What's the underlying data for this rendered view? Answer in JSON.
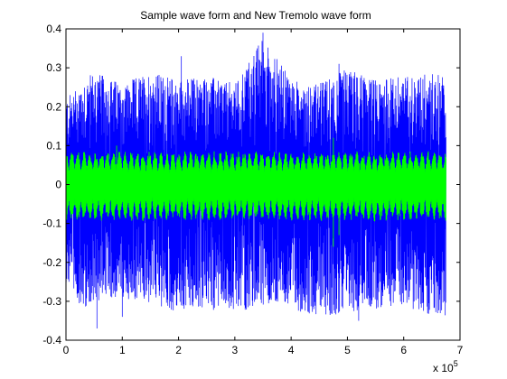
{
  "chart_data": {
    "type": "line",
    "title": "Sample wave form and New Tremolo wave form",
    "xlabel": "",
    "ylabel": "",
    "x_multiplier_label": "x 10",
    "x_multiplier_exponent": "5",
    "xlim": [
      0,
      7
    ],
    "ylim": [
      -0.4,
      0.4
    ],
    "x_data_extent": [
      0,
      6.75
    ],
    "xticks": [
      0,
      1,
      2,
      3,
      4,
      5,
      6,
      7
    ],
    "yticks": [
      0.4,
      0.3,
      0.2,
      0.1,
      0,
      -0.1,
      -0.2,
      -0.3,
      -0.4
    ],
    "ytick_labels": [
      "0.4",
      "0.3",
      "0.2",
      "0.1",
      "0",
      "-0.1",
      "-0.2",
      "-0.3",
      "-0.4"
    ],
    "grid": false,
    "legend": "none",
    "series": [
      {
        "color": "#0000ff",
        "style": "dense waveform",
        "envelope_upper": [
          [
            0,
            0.22
          ],
          [
            0.3,
            0.27
          ],
          [
            0.5,
            0.29
          ],
          [
            1.0,
            0.26
          ],
          [
            1.5,
            0.29
          ],
          [
            2.0,
            0.27
          ],
          [
            2.5,
            0.28
          ],
          [
            3.0,
            0.26
          ],
          [
            3.5,
            0.38
          ],
          [
            4.0,
            0.27
          ],
          [
            4.5,
            0.26
          ],
          [
            5.0,
            0.3
          ],
          [
            5.5,
            0.27
          ],
          [
            6.0,
            0.28
          ],
          [
            6.5,
            0.29
          ],
          [
            6.75,
            0.28
          ]
        ],
        "envelope_lower": [
          [
            0,
            -0.25
          ],
          [
            0.3,
            -0.32
          ],
          [
            0.5,
            -0.3
          ],
          [
            1.0,
            -0.29
          ],
          [
            1.5,
            -0.31
          ],
          [
            2.0,
            -0.33
          ],
          [
            2.5,
            -0.32
          ],
          [
            3.0,
            -0.33
          ],
          [
            3.5,
            -0.31
          ],
          [
            4.0,
            -0.32
          ],
          [
            4.5,
            -0.34
          ],
          [
            5.0,
            -0.33
          ],
          [
            5.5,
            -0.32
          ],
          [
            6.0,
            -0.31
          ],
          [
            6.5,
            -0.34
          ],
          [
            6.75,
            -0.34
          ]
        ],
        "peak_max": 0.39,
        "peak_min": -0.37
      },
      {
        "color": "#00ff00",
        "style": "tremolo-modulated waveform",
        "amplitude": 0.075,
        "tremolo_cycles": 64,
        "peak_max": 0.12,
        "peak_min": -0.16
      }
    ]
  }
}
